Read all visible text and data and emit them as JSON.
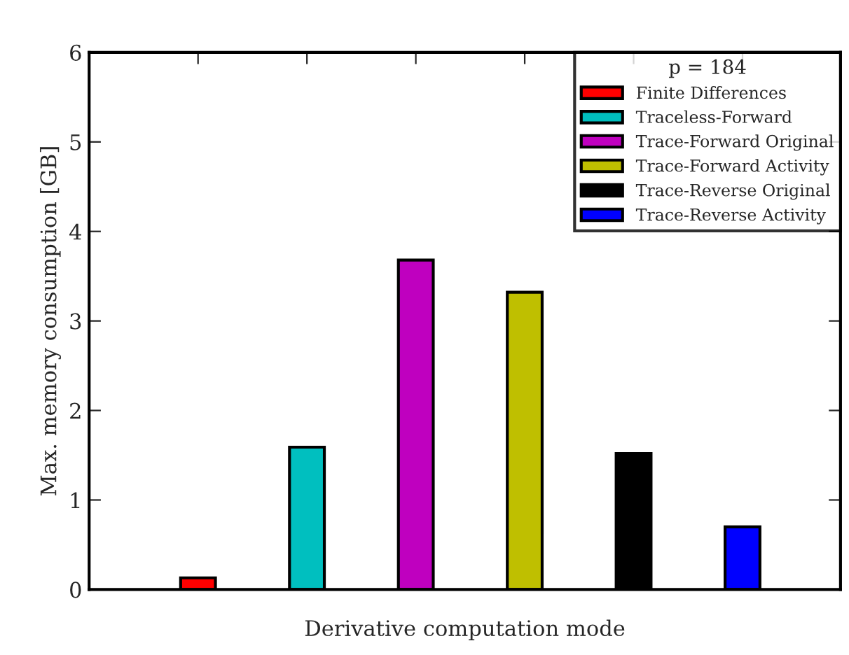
{
  "chart_data": {
    "type": "bar",
    "xlabel": "Derivative computation mode",
    "ylabel": "Max. memory consumption [GB]",
    "legend_title": "p = 184",
    "categories": [
      null,
      null,
      null,
      null,
      null,
      null
    ],
    "series": [
      {
        "name": "Finite Differences",
        "color": "#ff0000",
        "values": [
          0.13,
          null,
          null,
          null,
          null,
          null
        ]
      },
      {
        "name": "Traceless-Forward",
        "color": "#00bfbf",
        "values": [
          null,
          1.59,
          null,
          null,
          null,
          null
        ]
      },
      {
        "name": "Trace-Forward Original",
        "color": "#bf00bf",
        "values": [
          null,
          null,
          3.68,
          null,
          null,
          null
        ]
      },
      {
        "name": "Trace-Forward Activity",
        "color": "#bfbf00",
        "values": [
          null,
          null,
          null,
          3.32,
          null,
          null
        ]
      },
      {
        "name": "Trace-Reverse Original",
        "color": "#000000",
        "values": [
          null,
          null,
          null,
          null,
          1.52,
          null
        ]
      },
      {
        "name": "Trace-Reverse Activity",
        "color": "#0000ff",
        "values": [
          null,
          null,
          null,
          null,
          null,
          0.7
        ]
      }
    ],
    "ylim": [
      0,
      6
    ],
    "yticks": [
      0,
      1,
      2,
      3,
      4,
      5,
      6
    ],
    "grid": false,
    "legend": "top right",
    "tick_labels": "y"
  }
}
